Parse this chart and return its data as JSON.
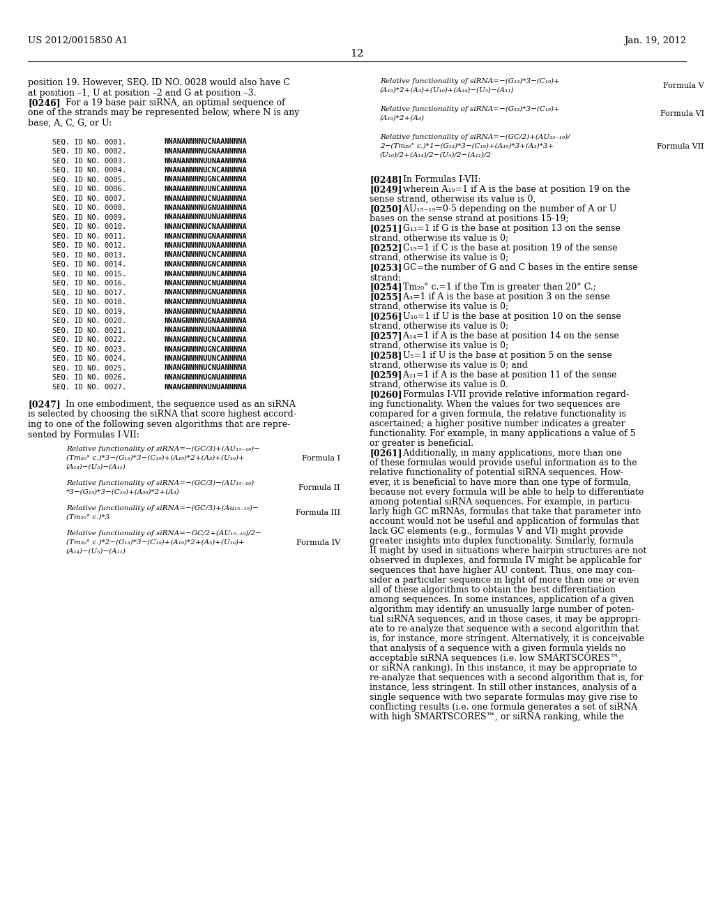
{
  "header_left": "US 2012/0015850 A1",
  "header_right": "Jan. 19, 2012",
  "page_number": "12",
  "bg_color": "#ffffff",
  "text_color": "#000000",
  "seq_entries": [
    [
      "SEQ. ID NO. 0001.",
      "NNANANNNNUCNAANNNNA"
    ],
    [
      "SEQ. ID NO. 0002.",
      "NNANANNNNUGNAANNNNA"
    ],
    [
      "SEQ. ID NO. 0003.",
      "NNANANNNNUUNAANNNNA"
    ],
    [
      "SEQ. ID NO. 0004.",
      "NNANANNNNUCNCANNNNA"
    ],
    [
      "SEQ. ID NO. 0005.",
      "NNANANNNNUGNCANNNNA"
    ],
    [
      "SEQ. ID NO. 0006.",
      "NNANANNNNUUNCANNNNA"
    ],
    [
      "SEQ. ID NO. 0007.",
      "NNANANNNNUCNUANNNNA"
    ],
    [
      "SEQ. ID NO. 0008.",
      "NNANANNNNUGNUANNNNA"
    ],
    [
      "SEQ. ID NO. 0009.",
      "NNANANNNNUUNUANNNNA"
    ],
    [
      "SEQ. ID NO. 0010.",
      "NNANCNNNNUCNAANNNNA"
    ],
    [
      "SEQ. ID NO. 0011.",
      "NNANCNNNNUGNAANNNNA"
    ],
    [
      "SEQ. ID NO. 0012.",
      "NNANCNNNNUUNAANNNNA"
    ],
    [
      "SEQ. ID NO. 0013.",
      "NNANCNNNNUCNCANNNNA"
    ],
    [
      "SEQ. ID NO. 0014.",
      "NNANCNNNNUGNCANNNNA"
    ],
    [
      "SEQ. ID NO. 0015.",
      "NNANCNNNNUUNCANNNNA"
    ],
    [
      "SEQ. ID NO. 0016.",
      "NNANCNNNNUCNUANNNNA"
    ],
    [
      "SEQ. ID NO. 0017.",
      "NNANCNNNNUGNUANNNNA"
    ],
    [
      "SEQ. ID NO. 0018.",
      "NNANCNNNNUUNUANNNNA"
    ],
    [
      "SEQ. ID NO. 0019.",
      "NNANGNNNNUCNAANNNNA"
    ],
    [
      "SEQ. ID NO. 0020.",
      "NNANGNNNNUGNAANNNNA"
    ],
    [
      "SEQ. ID NO. 0021.",
      "NNANGNNNNUUNAANNNNA"
    ],
    [
      "SEQ. ID NO. 0022.",
      "NNANGNNNNUCNCANNNNA"
    ],
    [
      "SEQ. ID NO. 0023.",
      "NNANGNNNNUGNCANNNNA"
    ],
    [
      "SEQ. ID NO. 0024.",
      "NNANGNNNNUUNCANNNNA"
    ],
    [
      "SEQ. ID NO. 0025.",
      "NNANGNNNNUCNUANNNNA"
    ],
    [
      "SEQ. ID NO. 0026.",
      "NNANGNNNNUGNUANNNNA"
    ],
    [
      "SEQ. ID NO. 0027.",
      "NNANGNNNNNUNUANNNNA"
    ]
  ],
  "formulas_left_text": [
    [
      "Relative functionality of siRNA=−(GC/3)+(AU₁₅₋₁₉)−",
      "(Tm₂₀° c.)*3−(G₁₃)*3−(C₁₉)+(A₁₉)*2+(A₃)+(U₁₀)+",
      "(A₁₄)−(U₅)−(A₁₁)"
    ],
    [
      "Relative functionality of siRNA=−(GC/3)−(AU₁₅₋₁₉)",
      "*3−(G₁₃)*3−(C₁₉)+(A₃₉)*2+(A₃)"
    ],
    [
      "Relative functionality of siRNA=−(GC/3)+(Au₁₅₋₁₉)−",
      "(Tm₂₀° c.)*3"
    ],
    [
      "Relative functionality of siRNA=−GC/2+(AU₁₅₋₁₉)/2−",
      "(Tm₂₀° c.)*2−(G₁₃)*3−(C₁₉)+(A₁₉)*2+(A₃)+(U₁₀)+",
      "(A₁₄)−(U₅)−(A₁₁)"
    ]
  ],
  "formulas_left_labels": [
    "Formula I",
    "Formula II",
    "Formula III",
    "Formula IV"
  ],
  "formulas_right_text": [
    [
      "Relative functionality of siRNA=−(G₁₃)*3−(C₁₉)+",
      "(A₁₉)*2+(A₃)+(U₁₀)+(A₁₄)−(U₅)−(A₁₁)"
    ],
    [
      "Relative functionality of siRNA=−(G₁₃)*3−(C₁₉)+",
      "(A₁₉)*2+(A₃)"
    ],
    [
      "Relative functionality of siRNA=−(GC/2)+(AU₁₅₋₁₉)/",
      "2−(Tm₂₀° c.)*1−(G₁₃)*3−(C₁₉)+(A₁₉)*3+(A₃)*3+",
      "(U₁₀)/2+(A₁₄)/2−(U₅)/2−(A₁₁)/2"
    ]
  ],
  "formulas_right_labels": [
    "Formula V",
    "Formula VI",
    "Formula VII"
  ],
  "para_items_right": [
    {
      "tag": "[0248]",
      "rest": "   In Formulas I-VII:",
      "continuation": []
    },
    {
      "tag": "[0249]",
      "rest": "   wherein A₁₉=1 if A is the base at position 19 on the",
      "continuation": [
        "sense strand, otherwise its value is 0,"
      ]
    },
    {
      "tag": "[0250]",
      "rest": "   AU₁₅₋₁₉=0-5 depending on the number of A or U",
      "continuation": [
        "bases on the sense strand at positions 15-19;"
      ]
    },
    {
      "tag": "[0251]",
      "rest": "   G₁₃=1 if G is the base at position 13 on the sense",
      "continuation": [
        "strand, otherwise its value is 0;"
      ]
    },
    {
      "tag": "[0252]",
      "rest": "   C₁₉=1 if C is the base at position 19 of the sense",
      "continuation": [
        "strand, otherwise its value is 0;"
      ]
    },
    {
      "tag": "[0253]",
      "rest": "   GC=the number of G and C bases in the entire sense",
      "continuation": [
        "strand;"
      ]
    },
    {
      "tag": "[0254]",
      "rest": "   Tm₂₀° c.=1 if the Tm is greater than 20° C.;",
      "continuation": []
    },
    {
      "tag": "[0255]",
      "rest": "   A₃=1 if A is the base at position 3 on the sense",
      "continuation": [
        "strand, otherwise its value is 0;"
      ]
    },
    {
      "tag": "[0256]",
      "rest": "   U₁₀=1 if U is the base at position 10 on the sense",
      "continuation": [
        "strand, otherwise its value is 0;"
      ]
    },
    {
      "tag": "[0257]",
      "rest": "   A₁₄=1 if A is the base at position 14 on the sense",
      "continuation": [
        "strand, otherwise its value is 0;"
      ]
    },
    {
      "tag": "[0258]",
      "rest": "   U₅=1 if U is the base at position 5 on the sense",
      "continuation": [
        "strand, otherwise its value is 0; and"
      ]
    },
    {
      "tag": "[0259]",
      "rest": "   A₁₁=1 if A is the base at position 11 of the sense",
      "continuation": [
        "strand, otherwise its value is 0."
      ]
    },
    {
      "tag": "[0260]",
      "rest": "   Formulas I-VII provide relative information regard-",
      "continuation": [
        "ing functionality. When the values for two sequences are",
        "compared for a given formula, the relative functionality is",
        "ascertained; a higher positive number indicates a greater",
        "functionality. For example, in many applications a value of 5",
        "or greater is beneficial."
      ]
    },
    {
      "tag": "[0261]",
      "rest": "   Additionally, in many applications, more than one",
      "continuation": [
        "of these formulas would provide useful information as to the",
        "relative functionality of potential siRNA sequences. How-",
        "ever, it is beneficial to have more than one type of formula,",
        "because not every formula will be able to help to differentiate",
        "among potential siRNA sequences. For example, in particu-",
        "larly high GC mRNAs, formulas that take that parameter into",
        "account would not be useful and application of formulas that",
        "lack GC elements (e.g., formulas V and VI) might provide",
        "greater insights into duplex functionality. Similarly, formula",
        "II might by used in situations where hairpin structures are not",
        "observed in duplexes, and formula IV might be applicable for",
        "sequences that have higher AU content. Thus, one may con-",
        "sider a particular sequence in light of more than one or even",
        "all of these algorithms to obtain the best differentiation",
        "among sequences. In some instances, application of a given",
        "algorithm may identify an unusually large number of poten-",
        "tial siRNA sequences, and in those cases, it may be appropri-",
        "ate to re-analyze that sequence with a second algorithm that",
        "is, for instance, more stringent. Alternatively, it is conceivable",
        "that analysis of a sequence with a given formula yields no",
        "acceptable siRNA sequences (i.e. low SMARTSCORES™,",
        "or siRNA ranking). In this instance, it may be appropriate to",
        "re-analyze that sequences with a second algorithm that is, for",
        "instance, less stringent. In still other instances, analysis of a",
        "single sequence with two separate formulas may give rise to",
        "conflicting results (i.e. one formula generates a set of siRNA",
        "with high SMARTSCORES™, or siRNA ranking, while the"
      ]
    }
  ]
}
